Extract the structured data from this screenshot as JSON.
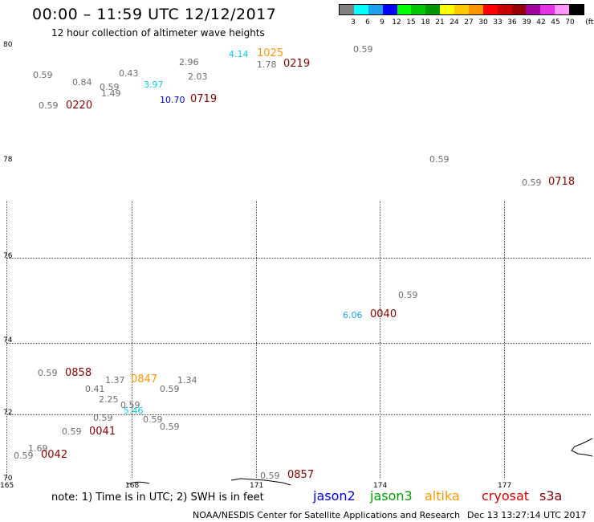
{
  "header": {
    "title": "00:00 – 11:59 UTC 12/12/2017",
    "subtitle": "12 hour collection of altimeter wave heights"
  },
  "legend": {
    "unit": "(ft)",
    "bins": [
      {
        "label": "3",
        "color": "#808080"
      },
      {
        "label": "6",
        "color": "#00ffff"
      },
      {
        "label": "9",
        "color": "#1ea0f0"
      },
      {
        "label": "12",
        "color": "#0000ff"
      },
      {
        "label": "15",
        "color": "#00ff00"
      },
      {
        "label": "18",
        "color": "#00c800"
      },
      {
        "label": "21",
        "color": "#009600"
      },
      {
        "label": "24",
        "color": "#ffff00"
      },
      {
        "label": "27",
        "color": "#ffc800"
      },
      {
        "label": "30",
        "color": "#ff9600"
      },
      {
        "label": "33",
        "color": "#ff0000"
      },
      {
        "label": "36",
        "color": "#c80000"
      },
      {
        "label": "39",
        "color": "#960000"
      },
      {
        "label": "42",
        "color": "#a0009b"
      },
      {
        "label": "45",
        "color": "#e632e6"
      },
      {
        "label": "70",
        "color": "#ff96ff"
      },
      {
        "label": "",
        "color": "#000000"
      }
    ]
  },
  "axes": {
    "lat_labels": [
      "80",
      "78",
      "76",
      "74",
      "72",
      "70"
    ],
    "lon_labels": [
      "165",
      "168",
      "171",
      "174",
      "177"
    ]
  },
  "observations": {
    "wave_heights": [
      {
        "text": "0.59",
        "color": "#6e6e6e"
      },
      {
        "text": "0.84",
        "color": "#6e6e6e"
      },
      {
        "text": "0.59",
        "color": "#6e6e6e"
      },
      {
        "text": "1.49",
        "color": "#6e6e6e"
      },
      {
        "text": "0.43",
        "color": "#6e6e6e"
      },
      {
        "text": "3.97",
        "color": "#00d0e0"
      },
      {
        "text": "2.96",
        "color": "#6e6e6e"
      },
      {
        "text": "2.03",
        "color": "#6e6e6e"
      },
      {
        "text": "10.70",
        "color": "#0000c8"
      },
      {
        "text": "4.14",
        "color": "#00d0e0"
      },
      {
        "text": "1.78",
        "color": "#6e6e6e"
      },
      {
        "text": "0.59",
        "color": "#6e6e6e"
      },
      {
        "text": "0.59",
        "color": "#6e6e6e"
      },
      {
        "text": "0.59",
        "color": "#6e6e6e"
      },
      {
        "text": "0.59",
        "color": "#6e6e6e"
      },
      {
        "text": "6.06",
        "color": "#1ea0f0"
      },
      {
        "text": "0.59",
        "color": "#6e6e6e"
      },
      {
        "text": "1.37",
        "color": "#6e6e6e"
      },
      {
        "text": "1.34",
        "color": "#6e6e6e"
      },
      {
        "text": "0.41",
        "color": "#6e6e6e"
      },
      {
        "text": "0.59",
        "color": "#6e6e6e"
      },
      {
        "text": "2.25",
        "color": "#6e6e6e"
      },
      {
        "text": "0.59",
        "color": "#6e6e6e"
      },
      {
        "text": "5.46",
        "color": "#00d0e0"
      },
      {
        "text": "0.59",
        "color": "#6e6e6e"
      },
      {
        "text": "0.59",
        "color": "#6e6e6e"
      },
      {
        "text": "0.59",
        "color": "#6e6e6e"
      },
      {
        "text": "0.59",
        "color": "#6e6e6e"
      },
      {
        "text": "1.69",
        "color": "#6e6e6e"
      },
      {
        "text": "0.59",
        "color": "#6e6e6e"
      },
      {
        "text": "0.59",
        "color": "#6e6e6e"
      }
    ],
    "pass_times": [
      {
        "text": "0220",
        "color": "#8b0000"
      },
      {
        "text": "0719",
        "color": "#8b0000"
      },
      {
        "text": "1025",
        "color": "#ff9600"
      },
      {
        "text": "0219",
        "color": "#8b0000"
      },
      {
        "text": "0718",
        "color": "#8b0000"
      },
      {
        "text": "0040",
        "color": "#8b0000"
      },
      {
        "text": "0858",
        "color": "#8b0000"
      },
      {
        "text": "0847",
        "color": "#ff9600"
      },
      {
        "text": "0041",
        "color": "#8b0000"
      },
      {
        "text": "0042",
        "color": "#8b0000"
      },
      {
        "text": "0857",
        "color": "#8b0000"
      }
    ]
  },
  "footer": {
    "note": "note: 1) Time is in UTC; 2) SWH is in feet",
    "missions": [
      {
        "name": "jason2",
        "color": "#0000ff"
      },
      {
        "name": "jason3",
        "color": "#00a000"
      },
      {
        "name": "altika",
        "color": "#ff9600"
      },
      {
        "name": "cryosat",
        "color": "#e00000"
      },
      {
        "name": "s3a",
        "color": "#8b0000"
      }
    ],
    "credit": "NOAA/NESDIS Center for Satellite Applications and Research",
    "timestamp": "Dec 13 13:27:14 UTC 2017"
  }
}
